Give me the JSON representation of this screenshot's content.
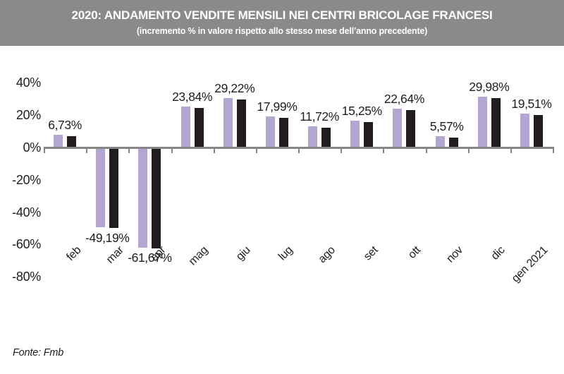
{
  "header": {
    "title": "2020: ANDAMENTO VENDITE MENSILI NEI CENTRI BRICOLAGE FRANCESI",
    "subtitle": "(incremento % in valore rispetto allo stesso mese dell’anno precedente)"
  },
  "footer": {
    "source": "Fonte: Fmb"
  },
  "colors": {
    "header_bg": "#8a8a8a",
    "bar_purple": "#b3a6d0",
    "bar_black": "#211d1e",
    "axis_gray": "#868686",
    "text": "#1d1d1b"
  },
  "chart_data": {
    "type": "bar",
    "title": "2020: ANDAMENTO VENDITE MENSILI NEI CENTRI BRICOLAGE FRANCESI",
    "subtitle": "(incremento % in valore rispetto allo stesso mese dell’anno precedente)",
    "categories": [
      "feb",
      "mar",
      "apr",
      "mag",
      "giu",
      "lug",
      "ago",
      "set",
      "ott",
      "nov",
      "dic",
      "gen 2021"
    ],
    "series": [
      {
        "name": "barra-viola",
        "color": "#b3a6d0",
        "values": [
          7.6,
          -48.8,
          -61.2,
          24.9,
          30.2,
          18.9,
          12.6,
          16.1,
          23.5,
          6.5,
          30.8,
          20.4
        ]
      },
      {
        "name": "barra-nera",
        "color": "#211d1e",
        "values": [
          6.73,
          -49.19,
          -61.67,
          23.84,
          29.22,
          17.99,
          11.72,
          15.25,
          22.64,
          5.57,
          29.98,
          19.51
        ]
      }
    ],
    "data_labels": [
      "6,73%",
      "-49,19%",
      "-61,67%",
      "23,84%",
      "29,22%",
      "17,99%",
      "11,72%",
      "15,25%",
      "22,64%",
      "5,57%",
      "29,98%",
      "19,51%"
    ],
    "y_ticks": {
      "labels": [
        "40%",
        "20%",
        "0%",
        "-20%",
        "-40%",
        "-60%",
        "-80%"
      ],
      "values": [
        40,
        20,
        0,
        -20,
        -40,
        -60,
        -80
      ]
    },
    "ylim": [
      -80,
      45
    ],
    "grid": false,
    "legend": "none",
    "source": "Fonte: Fmb"
  }
}
